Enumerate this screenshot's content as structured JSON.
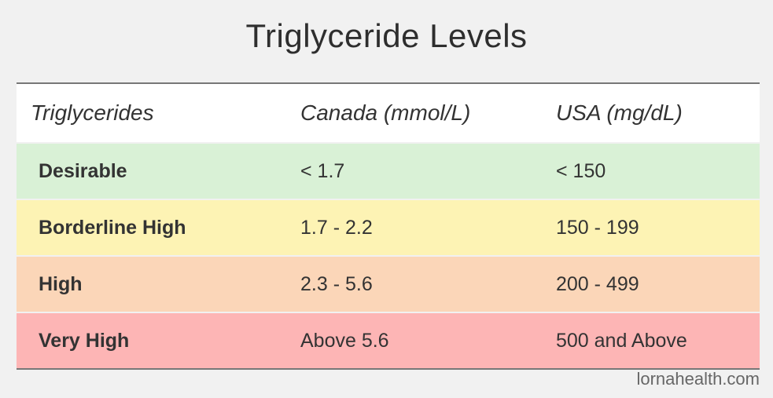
{
  "header": {
    "title": "Triglyceride Levels"
  },
  "table": {
    "columns": [
      "Triglycerides",
      "Canada (mmol/L)",
      "USA (mg/dL)"
    ],
    "rows": [
      [
        "Desirable",
        "< 1.7",
        "< 150"
      ],
      [
        "Borderline High",
        "1.7 - 2.2",
        "150 - 199"
      ],
      [
        "High",
        "2.3 - 5.6",
        "200 - 499"
      ],
      [
        "Very High",
        "Above 5.6",
        "500 and Above"
      ]
    ]
  },
  "footer": {
    "source": "lornahealth.com"
  }
}
